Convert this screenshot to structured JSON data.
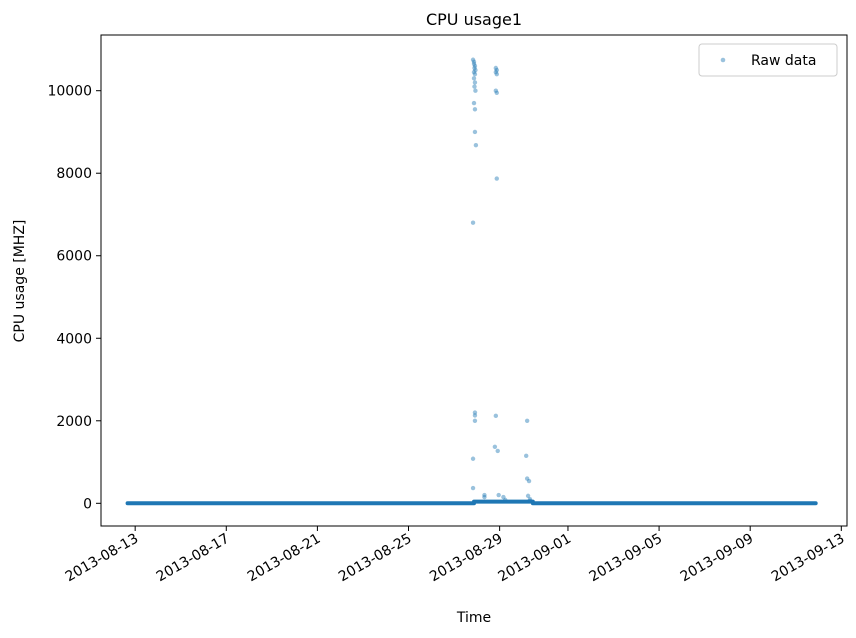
{
  "chart_data": {
    "type": "scatter",
    "title": "CPU usage1",
    "xlabel": "Time",
    "ylabel": "CPU usage [MHZ]",
    "x_type": "date",
    "xlim": [
      "2013-08-11T12:00",
      "2013-09-13T06:00"
    ],
    "ylim": [
      -550,
      11350
    ],
    "x_ticks": [
      "2013-08-13",
      "2013-08-17",
      "2013-08-21",
      "2013-08-25",
      "2013-08-29",
      "2013-09-01",
      "2013-09-05",
      "2013-09-09",
      "2013-09-13"
    ],
    "y_ticks": [
      0,
      2000,
      4000,
      6000,
      8000,
      10000
    ],
    "grid": false,
    "legend_position": "top-right",
    "color": "#1f77b4",
    "series": [
      {
        "name": "Raw data",
        "marker": "dot",
        "baseline": {
          "segments": [
            {
              "x_start": "2013-08-12T16:00",
              "x_end": "2013-08-27T21:00",
              "y": 0
            },
            {
              "x_start": "2013-08-27T21:00",
              "x_end": "2013-08-30T11:00",
              "y": 40
            },
            {
              "x_start": "2013-08-30T11:00",
              "x_end": "2013-09-11T21:00",
              "y": 0
            }
          ]
        },
        "points": [
          {
            "x": "2013-08-27T20:00",
            "y": 10750
          },
          {
            "x": "2013-08-27T21:00",
            "y": 10700
          },
          {
            "x": "2013-08-27T21:00",
            "y": 10650
          },
          {
            "x": "2013-08-27T22:00",
            "y": 10600
          },
          {
            "x": "2013-08-27T21:30",
            "y": 10550
          },
          {
            "x": "2013-08-27T22:30",
            "y": 10500
          },
          {
            "x": "2013-08-27T21:00",
            "y": 10450
          },
          {
            "x": "2013-08-27T22:00",
            "y": 10400
          },
          {
            "x": "2013-08-27T21:00",
            "y": 10300
          },
          {
            "x": "2013-08-27T22:00",
            "y": 10200
          },
          {
            "x": "2013-08-27T21:30",
            "y": 10100
          },
          {
            "x": "2013-08-27T22:30",
            "y": 10000
          },
          {
            "x": "2013-08-27T21:00",
            "y": 9700
          },
          {
            "x": "2013-08-27T22:00",
            "y": 9550
          },
          {
            "x": "2013-08-27T22:00",
            "y": 9000
          },
          {
            "x": "2013-08-27T23:00",
            "y": 8680
          },
          {
            "x": "2013-08-27T20:00",
            "y": 6800
          },
          {
            "x": "2013-08-27T22:00",
            "y": 2200
          },
          {
            "x": "2013-08-27T22:00",
            "y": 2130
          },
          {
            "x": "2013-08-27T22:00",
            "y": 2000
          },
          {
            "x": "2013-08-27T20:00",
            "y": 1080
          },
          {
            "x": "2013-08-27T20:00",
            "y": 370
          },
          {
            "x": "2013-08-28T08:00",
            "y": 200
          },
          {
            "x": "2013-08-28T08:00",
            "y": 150
          },
          {
            "x": "2013-08-28T20:00",
            "y": 10550
          },
          {
            "x": "2013-08-28T21:00",
            "y": 10500
          },
          {
            "x": "2013-08-28T20:00",
            "y": 10450
          },
          {
            "x": "2013-08-28T21:00",
            "y": 10400
          },
          {
            "x": "2013-08-28T20:00",
            "y": 10000
          },
          {
            "x": "2013-08-28T21:00",
            "y": 9950
          },
          {
            "x": "2013-08-28T21:00",
            "y": 7870
          },
          {
            "x": "2013-08-28T20:00",
            "y": 2120
          },
          {
            "x": "2013-08-28T19:00",
            "y": 1370
          },
          {
            "x": "2013-08-28T22:00",
            "y": 1270
          },
          {
            "x": "2013-08-28T23:00",
            "y": 200
          },
          {
            "x": "2013-08-29T04:00",
            "y": 150
          },
          {
            "x": "2013-08-29T06:00",
            "y": 80
          },
          {
            "x": "2013-08-30T05:00",
            "y": 2000
          },
          {
            "x": "2013-08-30T04:00",
            "y": 1150
          },
          {
            "x": "2013-08-30T05:00",
            "y": 600
          },
          {
            "x": "2013-08-30T07:00",
            "y": 540
          },
          {
            "x": "2013-08-30T06:00",
            "y": 180
          },
          {
            "x": "2013-08-30T08:00",
            "y": 100
          },
          {
            "x": "2013-08-30T08:00",
            "y": 60
          }
        ]
      }
    ]
  }
}
